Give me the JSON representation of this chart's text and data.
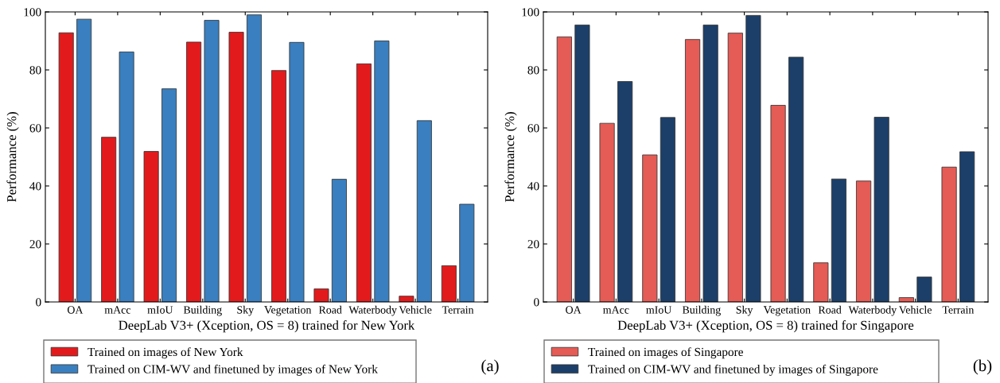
{
  "chart_data": [
    {
      "type": "bar",
      "categories": [
        "OA",
        "mAcc",
        "mIoU",
        "Building",
        "Sky",
        "Vegetation",
        "Road",
        "Waterbody",
        "Vehicle",
        "Terrain"
      ],
      "xlabel": "DeepLab V3+ (Xception, OS = 8) trained for New York",
      "ylabel": "Performance (%)",
      "ylim": [
        0,
        100
      ],
      "yticks": [
        0,
        20,
        40,
        60,
        80,
        100
      ],
      "legend": "bottom",
      "annotations": [
        "(a)"
      ],
      "series": [
        {
          "name": "Trained on images of New York",
          "color": "#e31a1c",
          "values": [
            92.8,
            56.8,
            51.9,
            89.6,
            93.0,
            79.8,
            4.5,
            82.1,
            2.0,
            12.5
          ]
        },
        {
          "name": "Trained on CIM-WV and finetuned by images of New York",
          "color": "#3a7fbf",
          "values": [
            97.5,
            86.2,
            73.5,
            97.1,
            99.0,
            89.5,
            42.3,
            90.0,
            62.5,
            33.7
          ]
        }
      ]
    },
    {
      "type": "bar",
      "categories": [
        "OA",
        "mAcc",
        "mIoU",
        "Building",
        "Sky",
        "Vegetation",
        "Road",
        "Waterbody",
        "Vehicle",
        "Terrain"
      ],
      "xlabel": "DeepLab V3+ (Xception, OS = 8) trained for Singapore",
      "ylabel": "Performance (%)",
      "ylim": [
        0,
        100
      ],
      "yticks": [
        0,
        20,
        40,
        60,
        80,
        100
      ],
      "legend": "bottom",
      "annotations": [
        "(b)"
      ],
      "series": [
        {
          "name": "Trained on images of Singapore",
          "color": "#e55b55",
          "values": [
            91.4,
            61.6,
            50.7,
            90.5,
            92.7,
            67.8,
            13.5,
            41.7,
            1.5,
            46.5
          ]
        },
        {
          "name": "Trained on CIM-WV and finetuned by images of Singapore",
          "color": "#1c3f6a",
          "values": [
            95.5,
            76.0,
            63.6,
            95.5,
            98.8,
            84.4,
            42.4,
            63.7,
            8.6,
            51.8
          ]
        }
      ]
    }
  ]
}
